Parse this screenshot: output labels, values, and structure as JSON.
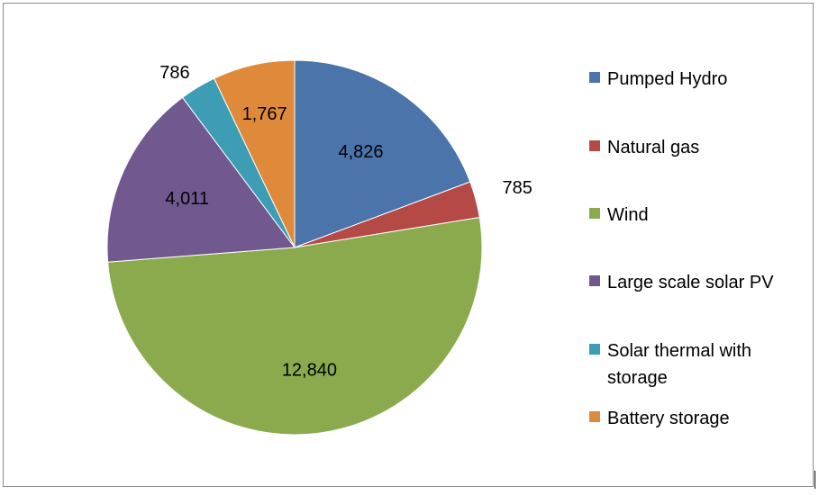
{
  "chart_data": {
    "type": "pie",
    "title": "",
    "legend_position": "right",
    "slices": [
      {
        "label": "Pumped Hydro",
        "value": 4826,
        "value_text": "4,826",
        "color": "#4a74aa"
      },
      {
        "label": "Natural gas",
        "value": 785,
        "value_text": "785",
        "color": "#b54945"
      },
      {
        "label": "Wind",
        "value": 12840,
        "value_text": "12,840",
        "color": "#8aaa4d"
      },
      {
        "label": "Large scale solar PV",
        "value": 4011,
        "value_text": "4,011",
        "color": "#71588f"
      },
      {
        "label": "Solar thermal with storage",
        "value": 786,
        "value_text": "786",
        "color": "#3c9db4"
      },
      {
        "label": "Battery storage",
        "value": 1767,
        "value_text": "1,767",
        "color": "#df8a3b"
      }
    ]
  }
}
